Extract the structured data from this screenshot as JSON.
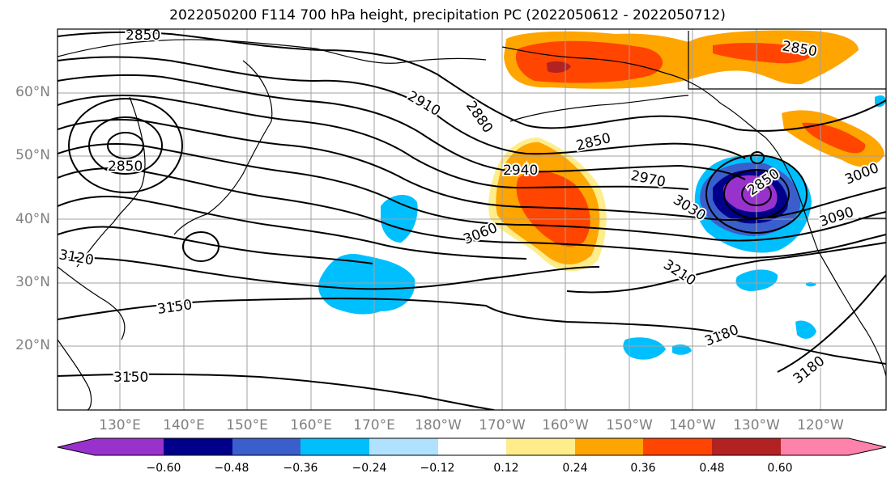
{
  "title": "2022050200 F114 700 hPa height, precipitation PC (2022050612 - 2022050712)",
  "lat_labels": [
    "60°N",
    "50°N",
    "40°N",
    "30°N",
    "20°N"
  ],
  "lon_labels": [
    "130°E",
    "140°E",
    "150°E",
    "160°E",
    "170°E",
    "180°W",
    "170°W",
    "160°W",
    "150°W",
    "140°W",
    "130°W",
    "120°W"
  ],
  "contour_labels": {
    "c2850_top": "2850",
    "c2850_ne": "2850",
    "c2850_w": "2850",
    "c2850_mid": "2850",
    "c2850_low": "2850",
    "c2880": "2880",
    "c2910": "2910",
    "c2940": "2940",
    "c2970": "2970",
    "c3000": "3000",
    "c3030": "3030",
    "c3060": "3060",
    "c3090": "3090",
    "c3120": "3120",
    "c3150_a": "3150",
    "c3150_b": "3150",
    "c3180_a": "3180",
    "c3180_b": "3180",
    "c3210": "3210"
  },
  "colorbar": {
    "ticks": [
      "−0.60",
      "−0.48",
      "−0.36",
      "−0.24",
      "−0.12",
      "0.12",
      "0.24",
      "0.36",
      "0.48",
      "0.60"
    ],
    "colors": [
      "#9932cc",
      "#00008b",
      "#3a5fcd",
      "#00bfff",
      "#b0e2ff",
      "#ffffff",
      "#ffec8b",
      "#ffa500",
      "#ff4500",
      "#b22222",
      "#ff82ab"
    ]
  },
  "colors": {
    "positive_light": "#ffec8b",
    "positive_mid": "#ffa500",
    "positive_strong": "#ff4500",
    "positive_max": "#b22222",
    "negative_light": "#b0e2ff",
    "negative_mid": "#00bfff",
    "negative_strong": "#3a5fcd",
    "negative_darker": "#00008b",
    "negative_max": "#9932cc"
  }
}
